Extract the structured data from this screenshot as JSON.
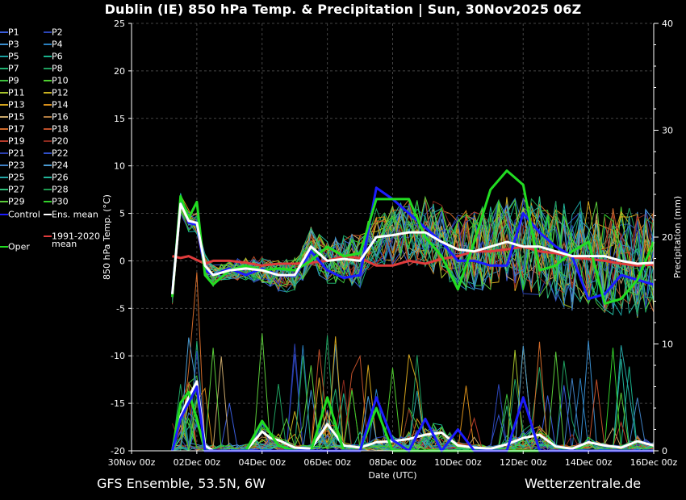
{
  "title": "Dublin  (IE)  850 hPa Temp. & Precipitation | Sun, 30Nov2025 06Z",
  "footer": {
    "left": "GFS Ensemble, 53.5N, 6W",
    "right": "Wetterzentrale.de"
  },
  "colors": {
    "ens_mean": "#ffffff",
    "control": "#1c1cff",
    "oper": "#22dd22",
    "climate": "#e03c3c"
  },
  "legend": {
    "members": [
      {
        "label": "P1",
        "color": "#3a5ddc"
      },
      {
        "label": "P2",
        "color": "#2c45b8"
      },
      {
        "label": "P3",
        "color": "#3b8fcf"
      },
      {
        "label": "P4",
        "color": "#2a7fbf"
      },
      {
        "label": "P5",
        "color": "#1aa0a0"
      },
      {
        "label": "P6",
        "color": "#19b28c"
      },
      {
        "label": "P7",
        "color": "#20b070"
      },
      {
        "label": "P8",
        "color": "#1f9f5f"
      },
      {
        "label": "P9",
        "color": "#3cbf3c"
      },
      {
        "label": "P10",
        "color": "#4fcf2f"
      },
      {
        "label": "P11",
        "color": "#a6c22a"
      },
      {
        "label": "P12",
        "color": "#c8b020"
      },
      {
        "label": "P13",
        "color": "#d4a41c"
      },
      {
        "label": "P14",
        "color": "#d88f1a"
      },
      {
        "label": "P15",
        "color": "#c9a76a"
      },
      {
        "label": "P16",
        "color": "#b07a40"
      },
      {
        "label": "P17",
        "color": "#d06a2a"
      },
      {
        "label": "P18",
        "color": "#c0502a"
      },
      {
        "label": "P19",
        "color": "#b83a2a"
      },
      {
        "label": "P20",
        "color": "#8c2a1e"
      },
      {
        "label": "P21",
        "color": "#2b3fb0"
      },
      {
        "label": "P22",
        "color": "#3050c8"
      },
      {
        "label": "P23",
        "color": "#3f80c4"
      },
      {
        "label": "P24",
        "color": "#4a9ad0"
      },
      {
        "label": "P25",
        "color": "#25a5a5"
      },
      {
        "label": "P26",
        "color": "#22b49a"
      },
      {
        "label": "P27",
        "color": "#2fbf7a"
      },
      {
        "label": "P28",
        "color": "#1f9a50"
      },
      {
        "label": "P29",
        "color": "#5acb3a"
      },
      {
        "label": "P30",
        "color": "#32d02a"
      }
    ],
    "control": "Control",
    "ens_mean": "Ens. mean",
    "climate_line1": "1991-2020",
    "climate_line2": "mean",
    "oper": "Oper"
  },
  "chart_data": {
    "type": "line",
    "title": "Dublin  (IE)  850 hPa Temp. & Precipitation | Sun, 30Nov2025 06Z",
    "xlabel": "Date (UTC)",
    "ylabel": "850 hPa Temp. (°C)",
    "y2label": "Precipitation (mm)",
    "ylim": [
      -20,
      25
    ],
    "y2lim": [
      0,
      40
    ],
    "yticks": [
      -20,
      -15,
      -10,
      -5,
      0,
      5,
      10,
      15,
      20,
      25
    ],
    "y2ticks": [
      0,
      10,
      20,
      30,
      40
    ],
    "xlim_days": [
      0,
      16
    ],
    "xticks": [
      {
        "day": 0,
        "label": "30Nov 00z"
      },
      {
        "day": 2,
        "label": "02Dec 00z"
      },
      {
        "day": 4,
        "label": "04Dec 00z"
      },
      {
        "day": 6,
        "label": "06Dec 00z"
      },
      {
        "day": 8,
        "label": "08Dec 00z"
      },
      {
        "day": 10,
        "label": "10Dec 00z"
      },
      {
        "day": 12,
        "label": "12Dec 00z"
      },
      {
        "day": 14,
        "label": "14Dec 00z"
      },
      {
        "day": 16,
        "label": "16Dec 00z"
      }
    ],
    "grid": true,
    "series": [
      {
        "name": "Ens. mean",
        "axis": "temp",
        "color": "#ffffff",
        "width": 3,
        "x": [
          1.25,
          1.5,
          1.75,
          2,
          2.25,
          2.5,
          3,
          3.5,
          4,
          4.5,
          5,
          5.5,
          6,
          6.5,
          7,
          7.5,
          8,
          8.5,
          9,
          9.5,
          10,
          10.5,
          11,
          11.5,
          12,
          12.5,
          13,
          13.5,
          14,
          14.5,
          15,
          15.5,
          16
        ],
        "y": [
          -3.5,
          6,
          4.2,
          4.0,
          -0.5,
          -1.5,
          -1,
          -0.8,
          -1,
          -1.5,
          -1.5,
          1.5,
          0,
          0.2,
          0,
          2.5,
          2.7,
          3,
          3,
          2,
          1.2,
          1,
          1.5,
          2,
          1.5,
          1.5,
          1,
          0.5,
          0.5,
          0.5,
          0,
          -0.3,
          -0.2
        ]
      },
      {
        "name": "Control",
        "axis": "temp",
        "color": "#1c1cff",
        "width": 3,
        "x": [
          1.25,
          1.5,
          1.75,
          2,
          2.25,
          2.5,
          3,
          3.5,
          4,
          4.5,
          5,
          5.5,
          6,
          6.5,
          7,
          7.5,
          8,
          8.5,
          9,
          9.5,
          10,
          10.5,
          11,
          11.5,
          12,
          12.5,
          13,
          13.5,
          14,
          14.5,
          15,
          15.5,
          16
        ],
        "y": [
          -3.5,
          6.5,
          4,
          3.8,
          -1,
          -1.5,
          -0.8,
          -1.5,
          -0.8,
          -1.5,
          -1.6,
          1,
          -1,
          -1.8,
          -1.5,
          7.7,
          6.5,
          5,
          3.5,
          2,
          0,
          0,
          -0.5,
          -0.5,
          5,
          3,
          1.5,
          0.5,
          -4,
          -3.5,
          -1.5,
          -2,
          -2.5
        ]
      },
      {
        "name": "Oper",
        "axis": "temp",
        "color": "#22dd22",
        "width": 3,
        "x": [
          1.25,
          1.5,
          1.75,
          2,
          2.25,
          2.5,
          3,
          3.5,
          4,
          4.5,
          5,
          5.5,
          6,
          6.5,
          7,
          7.5,
          8,
          8.5,
          9,
          9.5,
          10,
          10.5,
          11,
          11.5,
          12,
          12.5,
          13,
          13.5,
          14,
          14.5,
          15,
          15.5,
          16
        ],
        "y": [
          -3.8,
          6.8,
          4.5,
          6.2,
          -1.5,
          -2.5,
          -1,
          -0.5,
          -1,
          -0.8,
          -1,
          0,
          1.5,
          0.5,
          0.8,
          6.5,
          6.5,
          6.5,
          2.5,
          0.5,
          -3,
          2,
          7.5,
          9.5,
          8,
          -1,
          -0.5,
          1,
          2,
          -4.5,
          -4,
          -2,
          2
        ]
      },
      {
        "name": "1991-2020 mean",
        "axis": "temp",
        "color": "#e03c3c",
        "width": 3,
        "x": [
          1.25,
          1.5,
          1.75,
          2,
          2.25,
          2.5,
          3,
          3.5,
          4,
          4.5,
          5,
          5.5,
          6,
          6.5,
          7,
          7.5,
          8,
          8.5,
          9,
          9.5,
          10,
          10.5,
          11,
          11.5,
          12,
          12.5,
          13,
          13.5,
          14,
          14.5,
          15,
          15.5,
          16
        ],
        "y": [
          0.5,
          0.3,
          0.5,
          0.1,
          -0.3,
          0,
          0,
          -0.2,
          -0.5,
          -0.3,
          -0.3,
          -0.2,
          0,
          0.5,
          0.3,
          -0.5,
          -0.5,
          0,
          -0.3,
          0.2,
          0.5,
          1,
          1,
          1.2,
          1.5,
          1,
          0.8,
          0.4,
          0.2,
          0,
          -0.3,
          -0.5,
          -0.4
        ]
      },
      {
        "name": "Ens. mean precip",
        "axis": "precip",
        "color": "#ffffff",
        "width": 3,
        "x": [
          1.25,
          1.5,
          1.75,
          2,
          2.25,
          2.5,
          3,
          3.5,
          4,
          4.25,
          4.5,
          5,
          5.5,
          6,
          6.25,
          6.5,
          7,
          7.5,
          8,
          8.5,
          9,
          9.5,
          10,
          10.5,
          11,
          11.5,
          12,
          12.5,
          13,
          13.5,
          14,
          14.5,
          15,
          15.5,
          16
        ],
        "y": [
          0,
          3.2,
          5,
          6.5,
          0.5,
          0,
          0,
          0,
          1.8,
          1.2,
          1,
          0.3,
          0.2,
          2.5,
          1.5,
          0.5,
          0.3,
          0.8,
          0.9,
          1.1,
          1.5,
          1.7,
          0.5,
          0.3,
          0.2,
          0.6,
          1.2,
          1.5,
          0.4,
          0.2,
          0.8,
          0.5,
          0.3,
          0.9,
          0.5
        ]
      },
      {
        "name": "Control precip",
        "axis": "precip",
        "color": "#1c1cff",
        "width": 3,
        "x": [
          1.25,
          1.5,
          1.75,
          2,
          2.25,
          2.5,
          3,
          3.5,
          4,
          4.5,
          5,
          5.5,
          6,
          6.5,
          7,
          7.5,
          8,
          8.5,
          9,
          9.5,
          10,
          10.5,
          11,
          11.5,
          12,
          12.5,
          13,
          13.5,
          14,
          14.5,
          15,
          15.5,
          16
        ],
        "y": [
          0,
          3,
          4.5,
          6,
          0,
          0,
          0,
          0,
          0,
          0,
          0,
          0,
          0,
          0,
          0,
          5,
          1,
          0,
          3,
          0,
          2,
          0,
          0,
          0,
          5,
          0,
          0,
          0,
          0,
          0,
          0,
          0,
          0
        ]
      },
      {
        "name": "Oper precip",
        "axis": "precip",
        "color": "#22dd22",
        "width": 3,
        "x": [
          1.25,
          1.5,
          1.75,
          2,
          2.25,
          2.5,
          3,
          3.5,
          4,
          4.5,
          5,
          5.5,
          6,
          6.5,
          7,
          7.5,
          8,
          8.5,
          9,
          9.5,
          10,
          10.5,
          11,
          11.5,
          12,
          12.5,
          13,
          13.5,
          14,
          14.5,
          15,
          15.5,
          16
        ],
        "y": [
          0,
          4.5,
          5.5,
          3,
          0,
          0,
          0,
          0,
          2.8,
          0.5,
          0,
          0,
          5,
          0,
          0,
          4,
          0,
          0,
          0,
          0,
          0,
          0,
          0,
          0,
          0,
          0,
          0,
          0,
          0,
          0,
          0,
          0,
          0
        ]
      }
    ]
  }
}
